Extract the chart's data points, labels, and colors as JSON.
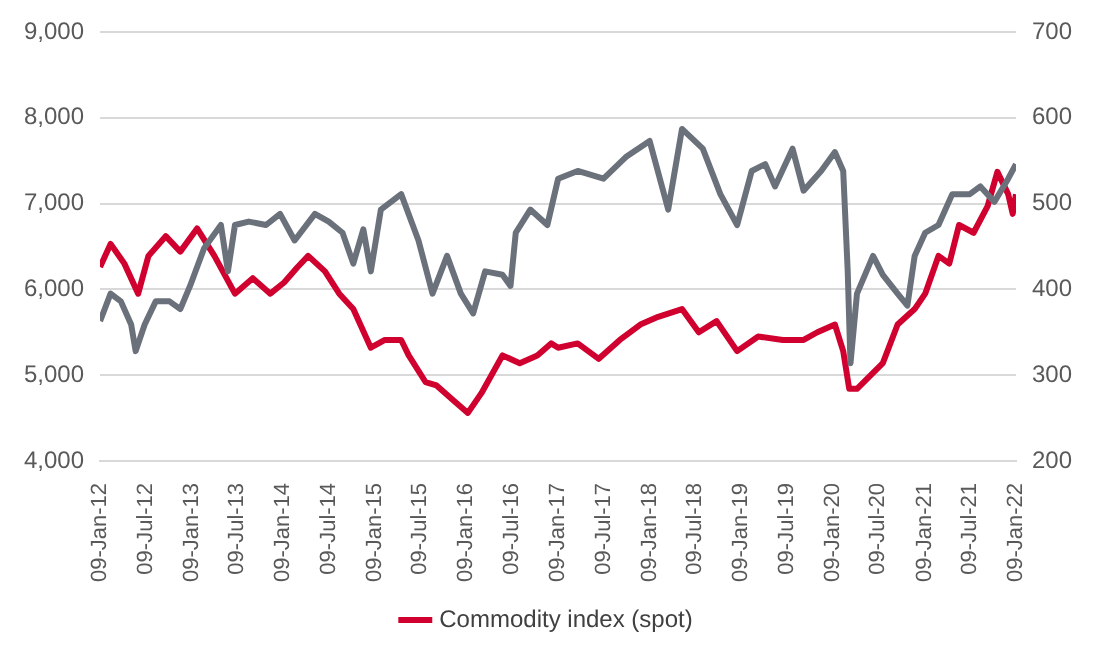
{
  "chart_data": {
    "type": "line",
    "legend": "bottom",
    "grid": "y",
    "marker": "none",
    "line_style": "solid",
    "ylim": [
      4000,
      9000
    ],
    "yticks": [
      {
        "value": 4000,
        "label": "4,000"
      },
      {
        "value": 5000,
        "label": "5,000"
      },
      {
        "value": 6000,
        "label": "6,000"
      },
      {
        "value": 7000,
        "label": "7,000"
      },
      {
        "value": 8000,
        "label": "8,000"
      },
      {
        "value": 9000,
        "label": "9,000"
      }
    ],
    "y2lim": [
      200,
      700
    ],
    "y2ticks": [
      200,
      300,
      400,
      500,
      600,
      700
    ],
    "xlim": [
      "2012-01-09",
      "2022-01-09"
    ],
    "xticks": [
      {
        "value": "2012-01-09",
        "label": "09-Jan-12"
      },
      {
        "value": "2012-07-09",
        "label": "09-Jul-12"
      },
      {
        "value": "2013-01-09",
        "label": "09-Jan-13"
      },
      {
        "value": "2013-07-09",
        "label": "09-Jul-13"
      },
      {
        "value": "2014-01-09",
        "label": "09-Jan-14"
      },
      {
        "value": "2014-07-09",
        "label": "09-Jul-14"
      },
      {
        "value": "2015-01-09",
        "label": "09-Jan-15"
      },
      {
        "value": "2015-07-09",
        "label": "09-Jul-15"
      },
      {
        "value": "2016-01-09",
        "label": "09-Jan-16"
      },
      {
        "value": "2016-07-09",
        "label": "09-Jul-16"
      },
      {
        "value": "2017-01-09",
        "label": "09-Jan-17"
      },
      {
        "value": "2017-07-09",
        "label": "09-Jul-17"
      },
      {
        "value": "2018-01-09",
        "label": "09-Jan-18"
      },
      {
        "value": "2018-07-09",
        "label": "09-Jul-18"
      },
      {
        "value": "2019-01-09",
        "label": "09-Jan-19"
      },
      {
        "value": "2019-07-09",
        "label": "09-Jul-19"
      },
      {
        "value": "2020-01-09",
        "label": "09-Jan-20"
      },
      {
        "value": "2020-07-09",
        "label": "09-Jul-20"
      },
      {
        "value": "2021-01-09",
        "label": "09-Jan-21"
      },
      {
        "value": "2021-07-09",
        "label": "09-Jul-21"
      },
      {
        "value": "2022-01-09",
        "label": "09-Jan-22"
      }
    ],
    "series": [
      {
        "color": "#6b717b",
        "x": [
          "2012-01-09",
          "2012-02-20",
          "2012-04-01",
          "2012-05-12",
          "2012-05-30",
          "2012-07-05",
          "2012-08-18",
          "2012-10-12",
          "2012-11-24",
          "2013-01-02",
          "2013-02-27",
          "2013-05-05",
          "2013-06-02",
          "2013-06-30",
          "2013-08-24",
          "2013-11-01",
          "2013-12-27",
          "2014-02-23",
          "2014-05-15",
          "2014-07-09",
          "2014-09-02",
          "2014-10-15",
          "2014-11-24",
          "2014-12-24",
          "2015-02-02",
          "2015-04-24",
          "2015-07-02",
          "2015-08-27",
          "2015-10-24",
          "2015-12-18",
          "2016-02-05",
          "2016-03-24",
          "2016-06-01",
          "2016-07-03",
          "2016-07-24",
          "2016-09-20",
          "2016-11-27",
          "2017-01-09",
          "2017-03-28",
          "2017-07-09",
          "2017-10-09",
          "2018-01-09",
          "2018-03-24",
          "2018-05-18",
          "2018-08-09",
          "2018-10-18",
          "2018-12-24",
          "2019-02-20",
          "2019-04-15",
          "2019-05-24",
          "2019-08-02",
          "2019-09-15",
          "2019-11-24",
          "2020-01-18",
          "2020-02-20",
          "2020-03-09",
          "2020-03-20",
          "2020-04-15",
          "2020-06-18",
          "2020-07-27",
          "2020-09-24",
          "2020-11-02",
          "2020-12-01",
          "2021-01-12",
          "2021-03-06",
          "2021-04-30",
          "2021-07-09",
          "2021-08-20",
          "2021-10-15",
          "2021-12-09",
          "2022-01-09"
        ],
        "values": [
          5630,
          5950,
          5860,
          5590,
          5280,
          5590,
          5860,
          5860,
          5770,
          6040,
          6480,
          6750,
          6210,
          6750,
          6790,
          6750,
          6880,
          6570,
          6880,
          6790,
          6660,
          6300,
          6700,
          6210,
          6930,
          7110,
          6570,
          5950,
          6390,
          5950,
          5720,
          6210,
          6170,
          6040,
          6660,
          6930,
          6750,
          7290,
          7380,
          7290,
          7550,
          7730,
          6930,
          7870,
          7640,
          7110,
          6750,
          7380,
          7460,
          7200,
          7640,
          7150,
          7380,
          7600,
          7380,
          6210,
          5140,
          5950,
          6390,
          6170,
          5950,
          5810,
          6390,
          6660,
          6750,
          7110,
          7110,
          7200,
          7020,
          7290,
          7460
        ]
      },
      {
        "name": "Commodity index (spot)",
        "color": "#d0002f",
        "axis": "y2",
        "x": [
          "2012-01-09",
          "2012-02-20",
          "2012-04-15",
          "2012-06-09",
          "2012-07-20",
          "2012-09-27",
          "2012-11-24",
          "2013-01-30",
          "2013-04-09",
          "2013-06-30",
          "2013-09-09",
          "2013-11-18",
          "2014-01-12",
          "2014-03-07",
          "2014-04-18",
          "2014-06-24",
          "2014-08-20",
          "2014-10-15",
          "2014-12-24",
          "2015-02-18",
          "2015-04-24",
          "2015-05-24",
          "2015-07-30",
          "2015-09-12",
          "2015-11-21",
          "2016-01-15",
          "2016-03-09",
          "2016-06-01",
          "2016-08-09",
          "2016-10-18",
          "2016-12-12",
          "2017-01-09",
          "2017-03-28",
          "2017-06-20",
          "2017-09-12",
          "2017-12-03",
          "2018-02-12",
          "2018-05-18",
          "2018-07-24",
          "2018-10-03",
          "2018-12-24",
          "2019-03-18",
          "2019-06-24",
          "2019-09-15",
          "2019-11-09",
          "2020-01-18",
          "2020-02-20",
          "2020-03-15",
          "2020-04-15",
          "2020-07-27",
          "2020-09-24",
          "2020-12-01",
          "2021-01-12",
          "2021-03-06",
          "2021-04-18",
          "2021-05-27",
          "2021-07-24",
          "2021-09-18",
          "2021-10-27",
          "2021-12-09",
          "2021-12-27",
          "2022-01-09"
        ],
        "values": [
          426,
          453,
          430,
          395,
          439,
          462,
          444,
          471,
          439,
          395,
          413,
          395,
          408,
          426,
          439,
          421,
          395,
          377,
          332,
          341,
          341,
          323,
          292,
          288,
          270,
          256,
          279,
          323,
          314,
          323,
          337,
          332,
          337,
          319,
          341,
          359,
          368,
          377,
          350,
          363,
          328,
          345,
          341,
          341,
          350,
          359,
          328,
          284,
          284,
          314,
          359,
          377,
          395,
          439,
          430,
          475,
          466,
          497,
          537,
          511,
          488,
          511
        ]
      }
    ]
  }
}
